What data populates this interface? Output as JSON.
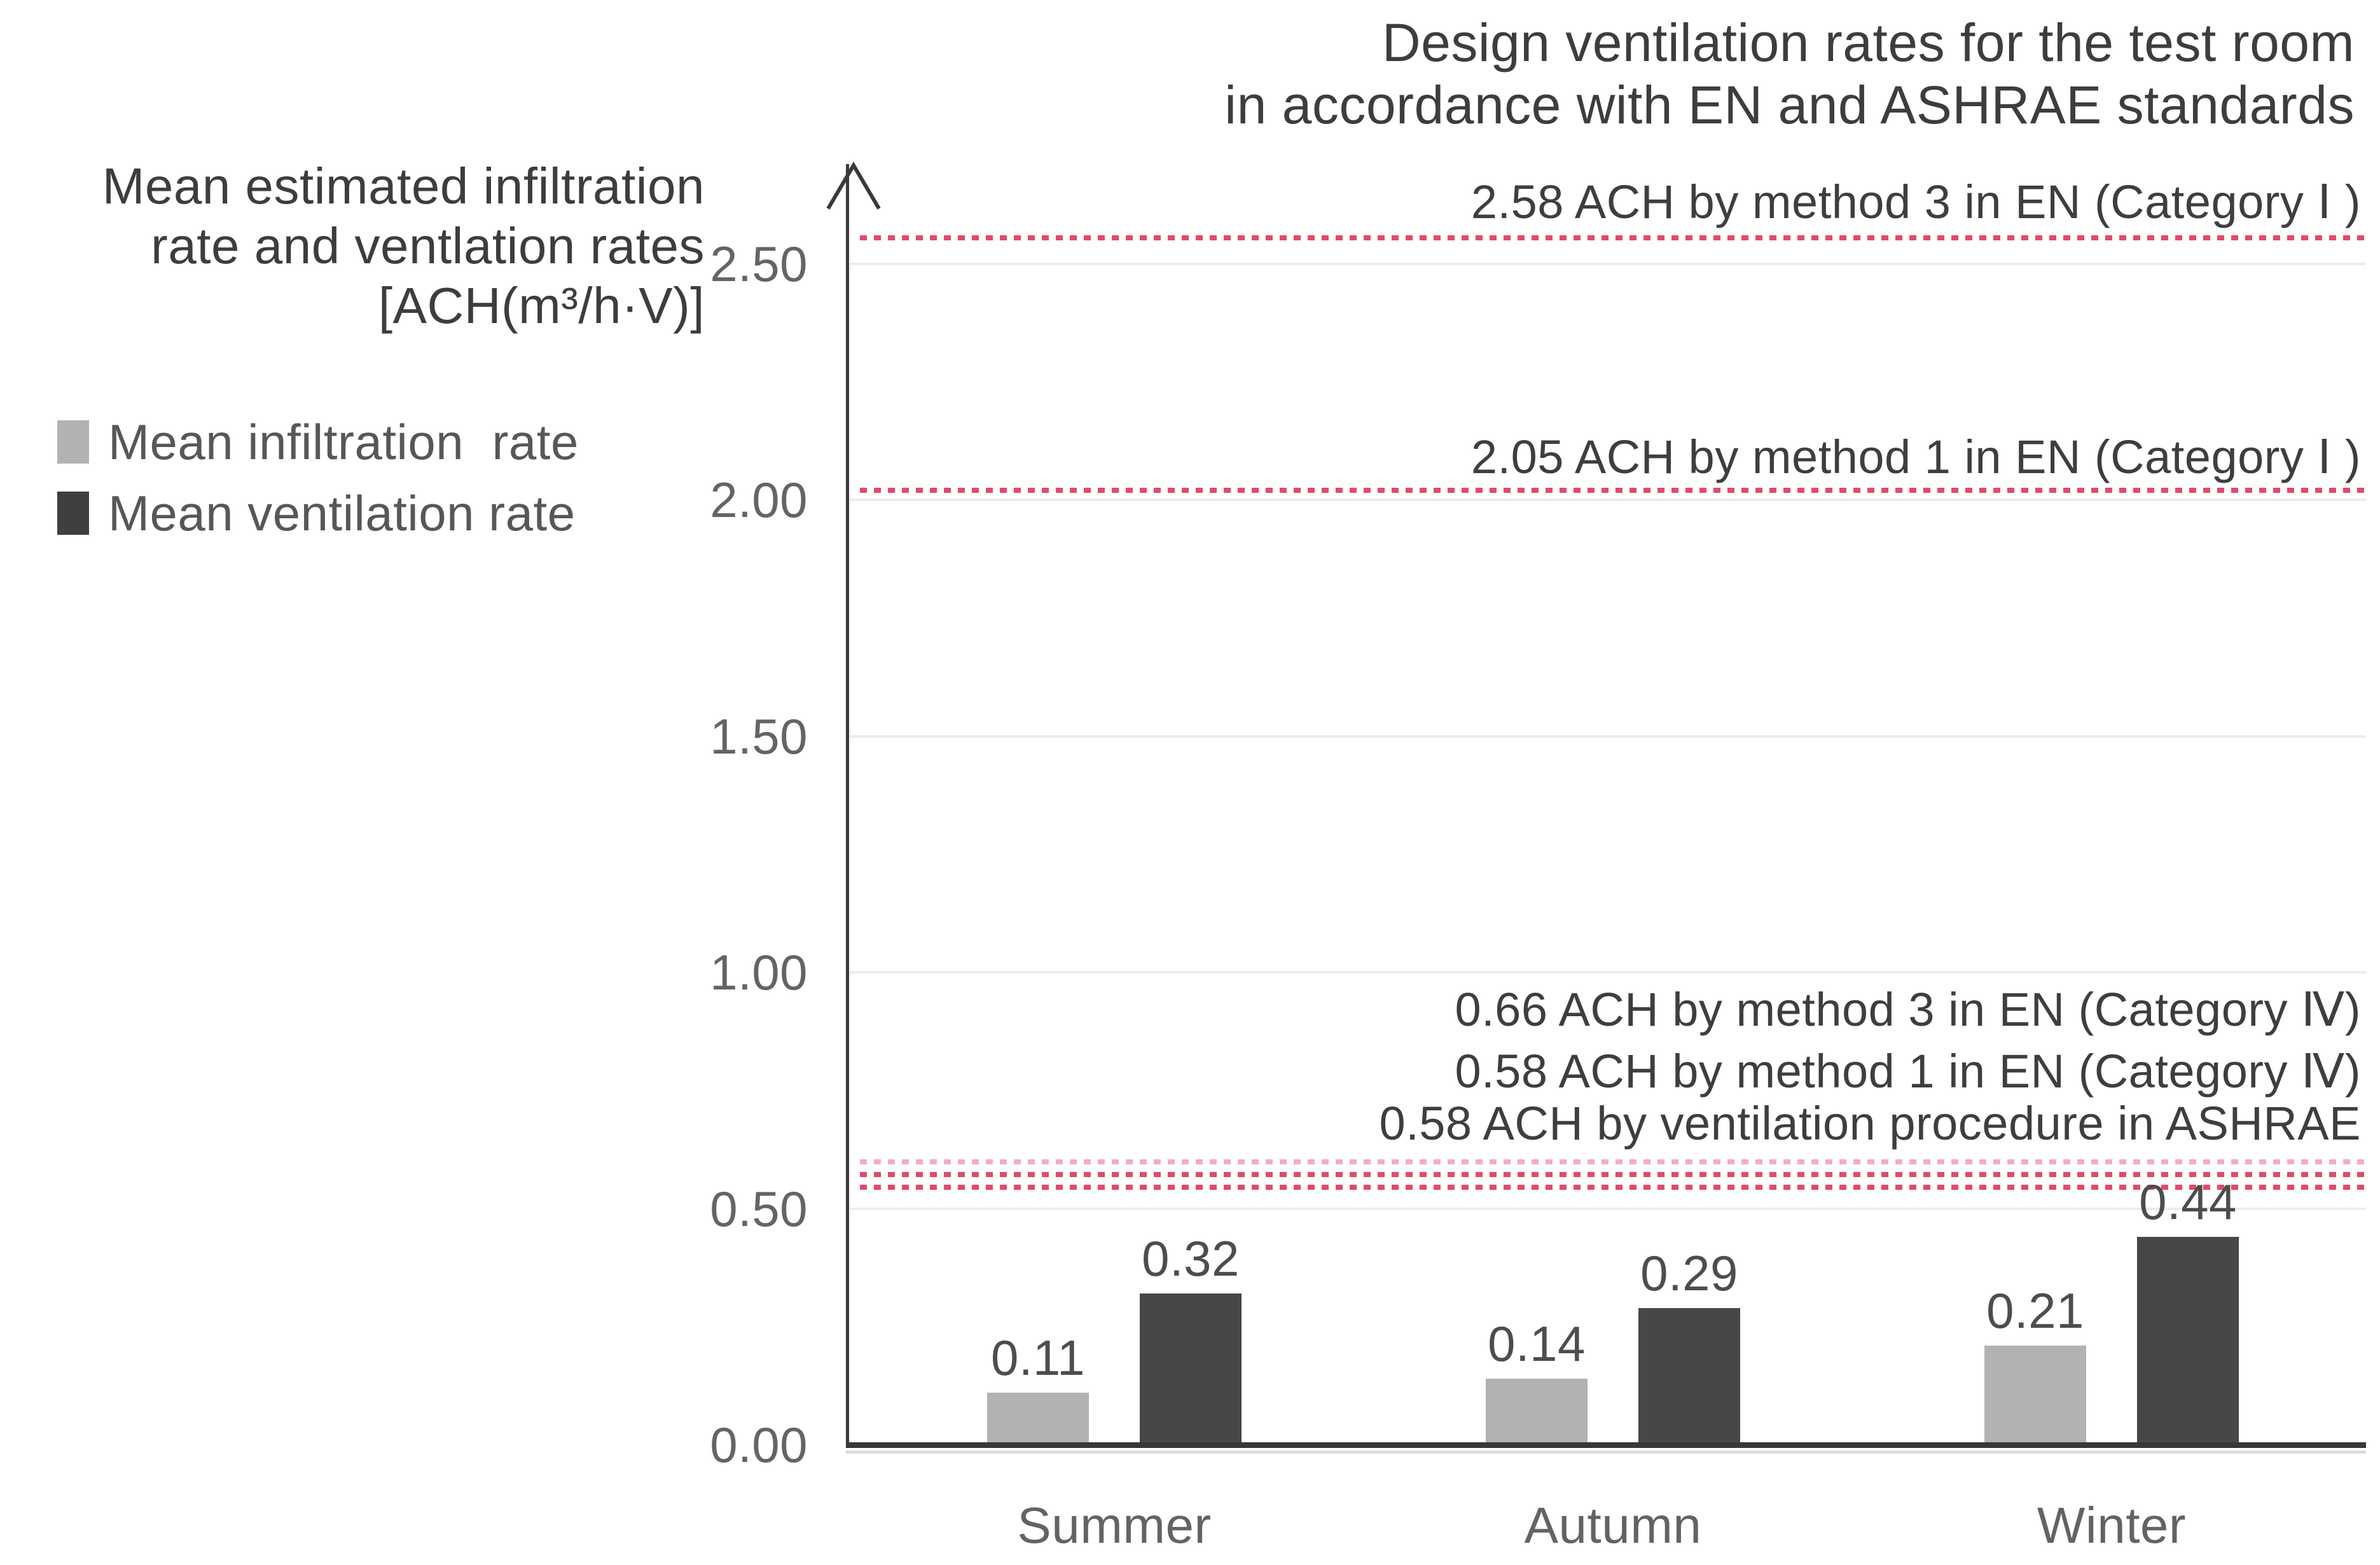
{
  "title": {
    "line1": "Design ventilation rates for the test room",
    "line2": "in accordance with EN and ASHRAE standards"
  },
  "y_axis_label": {
    "line1": "Mean estimated infiltration",
    "line2": "rate and ventlation rates",
    "line3": "[ACH(m³/h·V)]"
  },
  "legend": {
    "items": [
      {
        "label": "Mean infiltration  rate",
        "color": "#b2b2b2"
      },
      {
        "label": "Mean ventilation rate",
        "color": "#3f3f3f"
      }
    ]
  },
  "chart_data": {
    "type": "bar",
    "categories": [
      "Summer",
      "Autumn",
      "Winter"
    ],
    "series": [
      {
        "name": "Mean infiltration rate",
        "color": "#b2b2b2",
        "values": [
          0.11,
          0.14,
          0.21
        ]
      },
      {
        "name": "Mean ventilation rate",
        "color": "#474747",
        "values": [
          0.32,
          0.29,
          0.44
        ]
      }
    ],
    "y_ticks": [
      {
        "label": "0.00",
        "value": 0
      },
      {
        "label": "0.50",
        "value": 0.5
      },
      {
        "label": "1.00",
        "value": 1
      },
      {
        "label": "1.50",
        "value": 1.5
      },
      {
        "label": "2.00",
        "value": 2
      },
      {
        "label": "2.50",
        "value": 2.5
      }
    ],
    "ylim": [
      0,
      2.7
    ],
    "grid": "horizontal",
    "legend_position": "left",
    "accent_color": "#e24a68",
    "reference_lines": [
      {
        "value": 2.58,
        "label": "2.58 ACH by method 3 in EN (Category Ⅰ )",
        "color": "#e24a68",
        "style": "dotted",
        "line_pos": 2.555,
        "label_pos": 2.63,
        "opacity": 1
      },
      {
        "value": 2.05,
        "label": "2.05 ACH by method 1 in EN (Category Ⅰ )",
        "color": "#e24a68",
        "style": "dotted",
        "line_pos": 2.02,
        "label_pos": 2.09,
        "opacity": 1
      },
      {
        "value": 0.66,
        "label": "0.66 ACH by method 3 in EN (Category Ⅳ)",
        "color": "#e24a68",
        "style": "dotted",
        "line_pos": 0.599,
        "label_pos": 0.92,
        "opacity": 0.45
      },
      {
        "value": 0.58,
        "label": "0.58 ACH by method 1 in EN (Category Ⅳ)",
        "color": "#e24a68",
        "style": "dotted",
        "line_pos": 0.572,
        "label_pos": 0.79,
        "opacity": 1
      },
      {
        "value": 0.58,
        "label": "0.58 ACH by ventilation procedure in ASHRAE",
        "color": "#e24a68",
        "style": "dotted",
        "line_pos": 0.545,
        "label_pos": 0.68,
        "opacity": 1
      }
    ]
  }
}
